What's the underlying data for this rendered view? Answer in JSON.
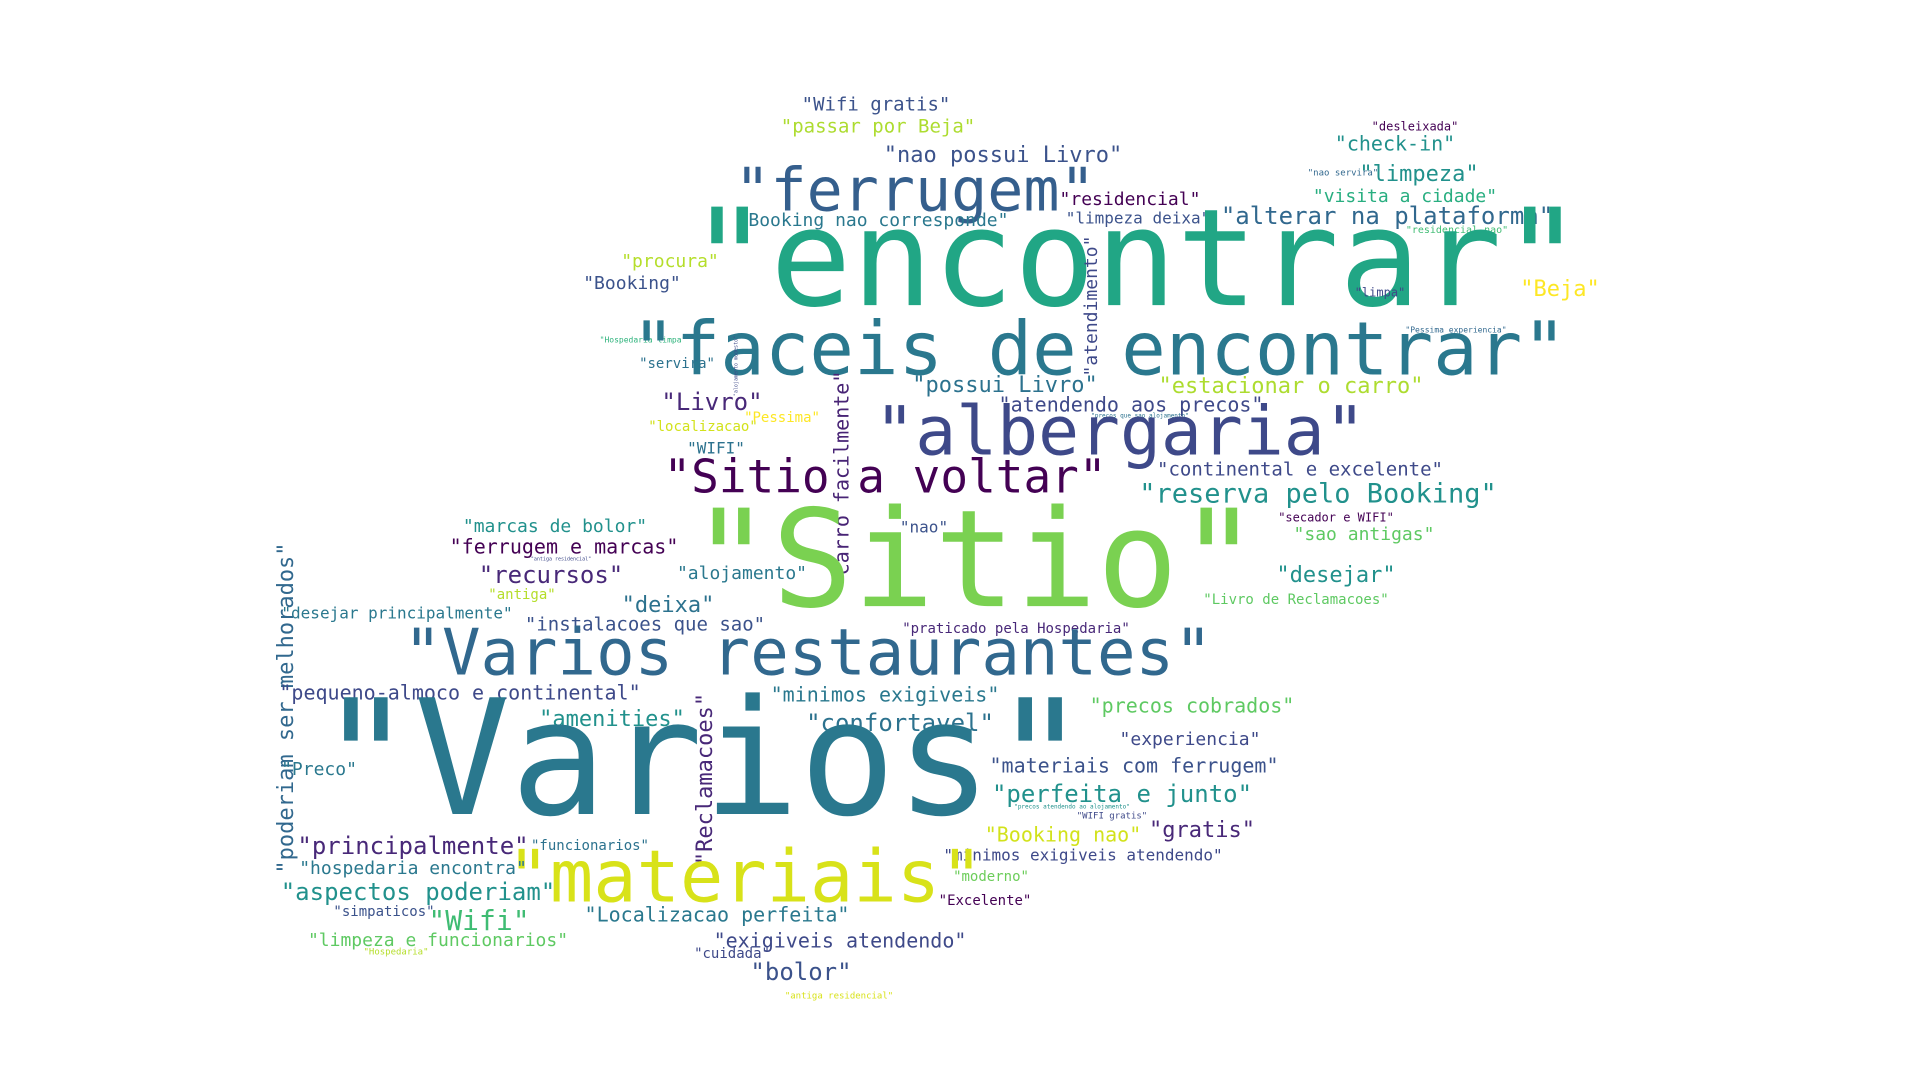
{
  "words": [
    {
      "text": "\"Wifi gratis\"",
      "color": "#3b528b"
    },
    {
      "text": "\"passar por Beja\"",
      "color": "#addc30"
    },
    {
      "text": "\"nao possui Livro\"",
      "color": "#3b528b"
    },
    {
      "text": "\"ferrugem\"",
      "color": "#355f8d"
    },
    {
      "text": "\"residencial\"",
      "color": "#440154"
    },
    {
      "text": "\"desleixada\"",
      "color": "#440154"
    },
    {
      "text": "\"check-in\"",
      "color": "#21918c"
    },
    {
      "text": "\"nao servira\"",
      "color": "#31688e"
    },
    {
      "text": "\"limpeza\"",
      "color": "#21918c"
    },
    {
      "text": "\"visita a cidade\"",
      "color": "#28ae80"
    },
    {
      "text": "\"limpeza deixa\"",
      "color": "#3b528b"
    },
    {
      "text": "\"Booking nao corresponde\"",
      "color": "#2a788e"
    },
    {
      "text": "\"alterar na plataforma\"",
      "color": "#31688e"
    },
    {
      "text": "\"residencial nao\"",
      "color": "#3fbc73"
    },
    {
      "text": "\"encontrar\"",
      "color": "#21a685"
    },
    {
      "text": "\"procura\"",
      "color": "#b5de2b"
    },
    {
      "text": "\"Booking\"",
      "color": "#3b528b"
    },
    {
      "text": "\"atendimento\"",
      "color": "#3e4989"
    },
    {
      "text": "\"limpa\"",
      "color": "#3e4989"
    },
    {
      "text": "\"Beja\"",
      "color": "#fde725"
    },
    {
      "text": "\"Pessima experiencia\"",
      "color": "#31688e"
    },
    {
      "text": "\"Hospedaria limpa\"",
      "color": "#2eb37c"
    },
    {
      "text": "\"faceis de encontrar\"",
      "color": "#2a788e"
    },
    {
      "text": "\"servira\"",
      "color": "#2c728e"
    },
    {
      "text": "\"alojamento modesto\"",
      "color": "#3e4989"
    },
    {
      "text": "\"possui Livro\"",
      "color": "#2c728e"
    },
    {
      "text": "\"estacionar o carro\"",
      "color": "#addc30"
    },
    {
      "text": "\"Livro\"",
      "color": "#482878"
    },
    {
      "text": "\"atendendo aos precos\"",
      "color": "#3e4989"
    },
    {
      "text": "\"precos que sao alojamento\"",
      "color": "#2c728e"
    },
    {
      "text": "\"albergaria\"",
      "color": "#3e4989"
    },
    {
      "text": "\"localizacao\"",
      "color": "#d2e21b"
    },
    {
      "text": "\"Pessima\"",
      "color": "#fde725"
    },
    {
      "text": "\"WIFI\"",
      "color": "#2c728e"
    },
    {
      "text": "\"carro facilmente\"",
      "color": "#482475"
    },
    {
      "text": "\"Sitio a voltar\"",
      "color": "#440154"
    },
    {
      "text": "\"continental e excelente\"",
      "color": "#3e4989"
    },
    {
      "text": "\"reserva pelo Booking\"",
      "color": "#21918c"
    },
    {
      "text": "\"marcas de bolor\"",
      "color": "#21918c"
    },
    {
      "text": "\"secador e WIFI\"",
      "color": "#440154"
    },
    {
      "text": "\"nao\"",
      "color": "#3b528b"
    },
    {
      "text": "\"sao antigas\"",
      "color": "#5ec962"
    },
    {
      "text": "\"ferrugem e marcas\"",
      "color": "#440154"
    },
    {
      "text": "\"Sitio\"",
      "color": "#7ad151"
    },
    {
      "text": "\"antiga residencial\"",
      "color": "#3e4989"
    },
    {
      "text": "\"recursos\"",
      "color": "#482878"
    },
    {
      "text": "\"alojamento\"",
      "color": "#2a788e"
    },
    {
      "text": "\"desejar\"",
      "color": "#21918c"
    },
    {
      "text": "\"antiga\"",
      "color": "#b5de2b"
    },
    {
      "text": "\"Livro de Reclamacoes\"",
      "color": "#5ec962"
    },
    {
      "text": "\"deixa\"",
      "color": "#2c728e"
    },
    {
      "text": "\"poderiam ser melhorados\"",
      "color": "#31688e"
    },
    {
      "text": "\"desejar principalmente\"",
      "color": "#2a788e"
    },
    {
      "text": "\"instalacoes que sao\"",
      "color": "#3b528b"
    },
    {
      "text": "\"praticado pela Hospedaria\"",
      "color": "#482878"
    },
    {
      "text": "\"Varios restaurantes\"",
      "color": "#31688e"
    },
    {
      "text": "\"pequeno-almoco e continental\"",
      "color": "#3e4989"
    },
    {
      "text": "\"minimos exigiveis\"",
      "color": "#2a788e"
    },
    {
      "text": "\"Reclamacoes\"",
      "color": "#482878"
    },
    {
      "text": "\"precos cobrados\"",
      "color": "#5ec962"
    },
    {
      "text": "\"amenities\"",
      "color": "#21918c"
    },
    {
      "text": "\"confortavel\"",
      "color": "#2c728e"
    },
    {
      "text": "\"experiencia\"",
      "color": "#3e4989"
    },
    {
      "text": "\"Varios\"",
      "color": "#2a788e"
    },
    {
      "text": "\"Preco\"",
      "color": "#2a788e"
    },
    {
      "text": "\"materiais com ferrugem\"",
      "color": "#3b528b"
    },
    {
      "text": "\"perfeita e junto\"",
      "color": "#21918c"
    },
    {
      "text": "\"precos atendendo ao alojamento\"",
      "color": "#21918c"
    },
    {
      "text": "\"WIFI gratis\"",
      "color": "#3e4989"
    },
    {
      "text": "\"gratis\"",
      "color": "#482878"
    },
    {
      "text": "\"Booking nao\"",
      "color": "#d2e21b"
    },
    {
      "text": "\"principalmente\"",
      "color": "#482878"
    },
    {
      "text": "\"funcionarios\"",
      "color": "#2c728e"
    },
    {
      "text": "\"minimos exigiveis atendendo\"",
      "color": "#3e4989"
    },
    {
      "text": "\"materiais\"",
      "color": "#d8e219"
    },
    {
      "text": "\"hospedaria encontra\"",
      "color": "#2a788e"
    },
    {
      "text": "\"moderno\"",
      "color": "#6ccd5a"
    },
    {
      "text": "\"aspectos poderiam\"",
      "color": "#21918c"
    },
    {
      "text": "\"Excelente\"",
      "color": "#440154"
    },
    {
      "text": "\"simpaticos\"",
      "color": "#3b528b"
    },
    {
      "text": "\"Wifi\"",
      "color": "#3fbc73"
    },
    {
      "text": "\"Localizacao perfeita\"",
      "color": "#2a788e"
    },
    {
      "text": "\"limpeza e funcionarios\"",
      "color": "#5ec962"
    },
    {
      "text": "\"Hospedaria\"",
      "color": "#b5de2b"
    },
    {
      "text": "\"exigiveis atendendo\"",
      "color": "#3e4989"
    },
    {
      "text": "\"cuidada\"",
      "color": "#3e4989"
    },
    {
      "text": "\"bolor\"",
      "color": "#3b528b"
    },
    {
      "text": "\"antiga residencial\"",
      "color": "#d8e219"
    }
  ]
}
